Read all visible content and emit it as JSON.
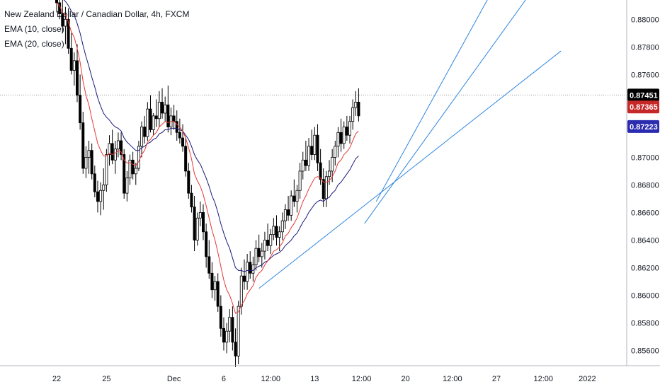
{
  "legend": {
    "title": "New Zealand Dollar / Canadian Dollar, 4h, FXCM",
    "ema10": "EMA (10, close)",
    "ema20": "EMA (20, close)"
  },
  "colors": {
    "up": "#ffffff",
    "down": "#000000",
    "wick": "#000000",
    "ema10": "#e53935",
    "ema20": "#1a1a7a",
    "trendline": "#2e86de",
    "crosshair": "#9598a1",
    "badge_last": "#000000",
    "badge_ema10": "#c62828",
    "badge_ema20": "#2b2bb0"
  },
  "chart_data": {
    "type": "candlestick",
    "symbol": "NZDCAD",
    "timeframe": "4h",
    "ylim": [
      0.8549,
      0.8814
    ],
    "y_ticks": [
      0.856,
      0.858,
      0.86,
      0.862,
      0.864,
      0.866,
      0.868,
      0.87,
      0.872,
      0.874,
      0.876,
      0.878,
      0.88
    ],
    "y_tick_labels": [
      "0.85600",
      "0.85800",
      "0.86000",
      "0.86200",
      "0.86400",
      "0.86600",
      "0.86800",
      "0.87000",
      "0.87200",
      "0.87400",
      "0.87600",
      "0.87800",
      "0.88000"
    ],
    "x_ticks": [
      {
        "label": "22",
        "bar": 0
      },
      {
        "label": "25",
        "bar": 17
      },
      {
        "label": "Dec",
        "bar": 40
      },
      {
        "label": "6",
        "bar": 57
      },
      {
        "label": "12:00",
        "bar": 73
      },
      {
        "label": "13",
        "bar": 88
      },
      {
        "label": "12:00",
        "bar": 104
      },
      {
        "label": "20",
        "bar": 119
      },
      {
        "label": "12:00",
        "bar": 135
      },
      {
        "label": "27",
        "bar": 150
      },
      {
        "label": "12:00",
        "bar": 166
      },
      {
        "label": "2022",
        "bar": 181
      }
    ],
    "ohlc": [
      [
        0.8816,
        0.8826,
        0.8805,
        0.8812
      ],
      [
        0.8812,
        0.882,
        0.88,
        0.8804
      ],
      [
        0.8804,
        0.8814,
        0.879,
        0.8795
      ],
      [
        0.8795,
        0.8809,
        0.8782,
        0.88
      ],
      [
        0.88,
        0.8808,
        0.8775,
        0.8779
      ],
      [
        0.8779,
        0.879,
        0.876,
        0.8763
      ],
      [
        0.8763,
        0.8776,
        0.8752,
        0.877
      ],
      [
        0.877,
        0.8782,
        0.874,
        0.8745
      ],
      [
        0.8745,
        0.876,
        0.872,
        0.8725
      ],
      [
        0.8725,
        0.8733,
        0.8688,
        0.8692
      ],
      [
        0.8692,
        0.8708,
        0.8685,
        0.87
      ],
      [
        0.87,
        0.8712,
        0.8688,
        0.8705
      ],
      [
        0.8705,
        0.871,
        0.8684,
        0.8688
      ],
      [
        0.8688,
        0.8694,
        0.8671,
        0.8675
      ],
      [
        0.8675,
        0.8683,
        0.866,
        0.8668
      ],
      [
        0.8668,
        0.8682,
        0.8658,
        0.8676
      ],
      [
        0.8676,
        0.8692,
        0.8662,
        0.868
      ],
      [
        0.868,
        0.8706,
        0.8675,
        0.8702
      ],
      [
        0.8702,
        0.8716,
        0.8694,
        0.871
      ],
      [
        0.871,
        0.872,
        0.8695,
        0.8698
      ],
      [
        0.8698,
        0.8712,
        0.8688,
        0.8706
      ],
      [
        0.8706,
        0.8718,
        0.87,
        0.8712
      ],
      [
        0.8712,
        0.8718,
        0.8698,
        0.8702
      ],
      [
        0.8702,
        0.8706,
        0.867,
        0.8674
      ],
      [
        0.8674,
        0.869,
        0.8668,
        0.8685
      ],
      [
        0.8685,
        0.8702,
        0.868,
        0.8698
      ],
      [
        0.8698,
        0.8704,
        0.8684,
        0.8688
      ],
      [
        0.8688,
        0.8696,
        0.868,
        0.8692
      ],
      [
        0.8692,
        0.8712,
        0.869,
        0.8708
      ],
      [
        0.8708,
        0.8726,
        0.87,
        0.8722
      ],
      [
        0.8722,
        0.873,
        0.871,
        0.8715
      ],
      [
        0.8715,
        0.874,
        0.8712,
        0.8735
      ],
      [
        0.8735,
        0.8745,
        0.8718,
        0.872
      ],
      [
        0.872,
        0.8732,
        0.8716,
        0.873
      ],
      [
        0.873,
        0.8742,
        0.8722,
        0.8728
      ],
      [
        0.8728,
        0.8748,
        0.8722,
        0.874
      ],
      [
        0.874,
        0.875,
        0.8728,
        0.8732
      ],
      [
        0.8732,
        0.8744,
        0.8726,
        0.8738
      ],
      [
        0.8738,
        0.8752,
        0.8718,
        0.8722
      ],
      [
        0.8722,
        0.8736,
        0.8716,
        0.873
      ],
      [
        0.873,
        0.8738,
        0.872,
        0.8726
      ],
      [
        0.8726,
        0.8734,
        0.8712,
        0.8718
      ],
      [
        0.8718,
        0.8728,
        0.871,
        0.8714
      ],
      [
        0.8714,
        0.8724,
        0.8704,
        0.8708
      ],
      [
        0.8708,
        0.8714,
        0.8686,
        0.869
      ],
      [
        0.869,
        0.8696,
        0.867,
        0.8674
      ],
      [
        0.8674,
        0.868,
        0.866,
        0.8664
      ],
      [
        0.8664,
        0.8672,
        0.8632,
        0.864
      ],
      [
        0.864,
        0.866,
        0.8636,
        0.8656
      ],
      [
        0.8656,
        0.8668,
        0.865,
        0.866
      ],
      [
        0.866,
        0.8666,
        0.864,
        0.8646
      ],
      [
        0.8646,
        0.8652,
        0.862,
        0.8628
      ],
      [
        0.8628,
        0.864,
        0.8612,
        0.8616
      ],
      [
        0.8616,
        0.8624,
        0.8598,
        0.8604
      ],
      [
        0.8604,
        0.8614,
        0.8596,
        0.861
      ],
      [
        0.861,
        0.8616,
        0.8588,
        0.8592
      ],
      [
        0.8592,
        0.86,
        0.857,
        0.8576
      ],
      [
        0.8576,
        0.8584,
        0.856,
        0.8566
      ],
      [
        0.8566,
        0.858,
        0.8558,
        0.8574
      ],
      [
        0.8574,
        0.859,
        0.8566,
        0.8584
      ],
      [
        0.8584,
        0.8592,
        0.856,
        0.8566
      ],
      [
        0.8566,
        0.8576,
        0.8548,
        0.8556
      ],
      [
        0.8556,
        0.8596,
        0.855,
        0.8592
      ],
      [
        0.8592,
        0.862,
        0.8586,
        0.8614
      ],
      [
        0.8614,
        0.8626,
        0.8604,
        0.861
      ],
      [
        0.861,
        0.863,
        0.8604,
        0.8624
      ],
      [
        0.8624,
        0.8632,
        0.8612,
        0.8616
      ],
      [
        0.8616,
        0.8628,
        0.861,
        0.8622
      ],
      [
        0.8622,
        0.864,
        0.8618,
        0.8634
      ],
      [
        0.8634,
        0.8644,
        0.8624,
        0.8628
      ],
      [
        0.8628,
        0.8638,
        0.862,
        0.8632
      ],
      [
        0.8632,
        0.8646,
        0.8626,
        0.864
      ],
      [
        0.864,
        0.8652,
        0.8632,
        0.8636
      ],
      [
        0.8636,
        0.8648,
        0.863,
        0.8644
      ],
      [
        0.8644,
        0.8656,
        0.864,
        0.865
      ],
      [
        0.865,
        0.8658,
        0.8636,
        0.8642
      ],
      [
        0.8642,
        0.865,
        0.8632,
        0.8646
      ],
      [
        0.8646,
        0.866,
        0.864,
        0.8654
      ],
      [
        0.8654,
        0.8666,
        0.8648,
        0.8662
      ],
      [
        0.8662,
        0.8672,
        0.8654,
        0.8658
      ],
      [
        0.8658,
        0.8676,
        0.8654,
        0.8672
      ],
      [
        0.8672,
        0.8684,
        0.8664,
        0.8668
      ],
      [
        0.8668,
        0.868,
        0.866,
        0.8676
      ],
      [
        0.8676,
        0.8696,
        0.867,
        0.869
      ],
      [
        0.869,
        0.8704,
        0.8684,
        0.8698
      ],
      [
        0.8698,
        0.8712,
        0.869,
        0.8694
      ],
      [
        0.8694,
        0.8714,
        0.869,
        0.8708
      ],
      [
        0.8708,
        0.872,
        0.8698,
        0.8702
      ],
      [
        0.8702,
        0.8722,
        0.8698,
        0.8716
      ],
      [
        0.8716,
        0.8724,
        0.869,
        0.8696
      ],
      [
        0.8696,
        0.8706,
        0.868,
        0.8684
      ],
      [
        0.8684,
        0.8692,
        0.8664,
        0.867
      ],
      [
        0.867,
        0.869,
        0.8664,
        0.8686
      ],
      [
        0.8686,
        0.8698,
        0.868,
        0.869
      ],
      [
        0.869,
        0.8706,
        0.8682,
        0.87
      ],
      [
        0.87,
        0.8712,
        0.8694,
        0.8708
      ],
      [
        0.8708,
        0.8722,
        0.87,
        0.8718
      ],
      [
        0.8718,
        0.8728,
        0.8704,
        0.871
      ],
      [
        0.871,
        0.8726,
        0.8706,
        0.8722
      ],
      [
        0.8722,
        0.873,
        0.8712,
        0.8716
      ],
      [
        0.8716,
        0.873,
        0.871,
        0.8726
      ],
      [
        0.8726,
        0.8742,
        0.872,
        0.8736
      ],
      [
        0.8736,
        0.8748,
        0.873,
        0.874
      ],
      [
        0.874,
        0.875,
        0.8726,
        0.873
      ]
    ],
    "ema10": [
      0.8812,
      0.881,
      0.8805,
      0.8803,
      0.8798,
      0.8791,
      0.8787,
      0.8779,
      0.8769,
      0.8755,
      0.8745,
      0.8738,
      0.8728,
      0.8719,
      0.871,
      0.8705,
      0.8701,
      0.8701,
      0.8703,
      0.8702,
      0.8703,
      0.8705,
      0.8704,
      0.8698,
      0.8696,
      0.8696,
      0.8695,
      0.8694,
      0.8697,
      0.8702,
      0.8705,
      0.8711,
      0.8713,
      0.8716,
      0.8718,
      0.8722,
      0.8724,
      0.8726,
      0.8725,
      0.8726,
      0.8726,
      0.8724,
      0.8722,
      0.8719,
      0.8714,
      0.8707,
      0.8699,
      0.8688,
      0.8683,
      0.8679,
      0.8673,
      0.8665,
      0.8656,
      0.8647,
      0.864,
      0.8631,
      0.8621,
      0.8611,
      0.8604,
      0.86,
      0.8594,
      0.8587,
      0.8588,
      0.8593,
      0.8596,
      0.8601,
      0.8604,
      0.8607,
      0.8613,
      0.8616,
      0.8618,
      0.8622,
      0.8625,
      0.8628,
      0.8632,
      0.8633,
      0.8635,
      0.8638,
      0.8643,
      0.8645,
      0.8649,
      0.8652,
      0.8656,
      0.8662,
      0.8668,
      0.8672,
      0.8677,
      0.8681,
      0.8685,
      0.8686,
      0.8685,
      0.8682,
      0.8682,
      0.8683,
      0.8686,
      0.869,
      0.8696,
      0.8698,
      0.8702,
      0.8704,
      0.8707,
      0.8712,
      0.8717,
      0.8719
    ],
    "ema20": [
      0.8818,
      0.8817,
      0.8815,
      0.8813,
      0.881,
      0.8806,
      0.8803,
      0.8797,
      0.879,
      0.8781,
      0.8773,
      0.8766,
      0.8758,
      0.8751,
      0.8743,
      0.8737,
      0.8732,
      0.8729,
      0.8727,
      0.8724,
      0.8722,
      0.8721,
      0.8719,
      0.8714,
      0.8711,
      0.8709,
      0.8707,
      0.8705,
      0.8705,
      0.8707,
      0.8708,
      0.871,
      0.8711,
      0.8713,
      0.8714,
      0.8717,
      0.8718,
      0.872,
      0.872,
      0.8721,
      0.8721,
      0.8721,
      0.872,
      0.8719,
      0.8716,
      0.8713,
      0.8708,
      0.8702,
      0.8698,
      0.8695,
      0.869,
      0.8685,
      0.8679,
      0.8672,
      0.8667,
      0.866,
      0.8652,
      0.8645,
      0.8639,
      0.8634,
      0.8627,
      0.862,
      0.8618,
      0.8618,
      0.8617,
      0.8618,
      0.8618,
      0.8618,
      0.862,
      0.8621,
      0.8622,
      0.8624,
      0.8625,
      0.8627,
      0.8629,
      0.863,
      0.8631,
      0.8633,
      0.8636,
      0.8638,
      0.864,
      0.8643,
      0.8645,
      0.8649,
      0.8653,
      0.8656,
      0.866,
      0.8663,
      0.8666,
      0.8668,
      0.8669,
      0.8668,
      0.867,
      0.8671,
      0.8674,
      0.8676,
      0.868,
      0.8682,
      0.8685,
      0.8688,
      0.8691,
      0.8695,
      0.8699,
      0.8701
    ],
    "trendlines": [
      {
        "from_bar": 69,
        "from_price": 0.8605,
        "to_bar": 172,
        "to_price": 0.8777
      },
      {
        "from_bar": 105,
        "from_price": 0.8652,
        "to_bar": 164,
        "to_price": 0.8826
      },
      {
        "from_bar": 109,
        "from_price": 0.8668,
        "to_bar": 150,
        "to_price": 0.8826
      }
    ],
    "crosshair_price": 0.87451,
    "badges": [
      {
        "label": "0.87451",
        "price": 0.87451,
        "color_key": "badge_last"
      },
      {
        "label": "0.87365",
        "price": 0.87365,
        "color_key": "badge_ema10"
      },
      {
        "label": "0.87223",
        "price": 0.87223,
        "color_key": "badge_ema20"
      }
    ]
  }
}
